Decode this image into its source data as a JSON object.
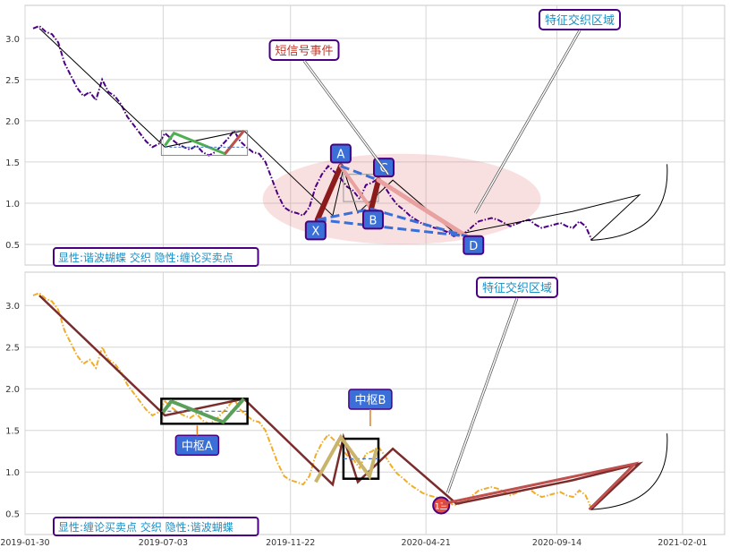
{
  "chart_data": [
    {
      "type": "line",
      "panel": "top",
      "xlim": [
        "2019-01-30",
        "2021-03-20"
      ],
      "ylim": [
        0.25,
        3.4
      ],
      "yticks": [
        0.5,
        1.0,
        1.5,
        2.0,
        2.5,
        3.0
      ],
      "ytick_labels": [
        "0.5",
        "1.0",
        "1.5",
        "2.0",
        "2.5",
        "3.0"
      ],
      "grid": true,
      "series": [
        {
          "color": "#4b0082",
          "style": "dash-dot",
          "x": [
            "2019-02-08",
            "2019-02-15",
            "2019-02-22",
            "2019-03-01",
            "2019-03-08",
            "2019-03-15",
            "2019-03-22",
            "2019-03-29",
            "2019-04-05",
            "2019-04-12",
            "2019-04-19",
            "2019-04-26",
            "2019-05-03",
            "2019-05-10",
            "2019-05-17",
            "2019-05-24",
            "2019-05-31",
            "2019-06-07",
            "2019-06-14",
            "2019-06-21",
            "2019-06-28",
            "2019-07-05",
            "2019-07-12",
            "2019-07-19",
            "2019-07-26",
            "2019-08-02",
            "2019-08-09",
            "2019-08-16",
            "2019-08-23",
            "2019-08-30",
            "2019-09-06",
            "2019-09-13",
            "2019-09-20",
            "2019-09-27",
            "2019-10-04",
            "2019-10-11",
            "2019-10-18",
            "2019-10-25",
            "2019-11-01",
            "2019-11-08",
            "2019-11-15",
            "2019-11-22",
            "2019-11-29",
            "2019-12-06",
            "2019-12-13",
            "2019-12-20",
            "2019-12-27",
            "2020-01-03",
            "2020-01-10",
            "2020-01-17",
            "2020-01-24",
            "2020-01-31",
            "2020-02-07",
            "2020-02-14",
            "2020-02-21",
            "2020-02-28",
            "2020-03-06",
            "2020-03-13",
            "2020-03-20",
            "2020-03-27",
            "2020-04-03",
            "2020-04-10",
            "2020-04-17",
            "2020-04-24",
            "2020-05-01",
            "2020-05-08",
            "2020-05-15",
            "2020-05-22",
            "2020-05-29",
            "2020-06-05",
            "2020-06-12",
            "2020-06-19",
            "2020-06-26",
            "2020-07-03",
            "2020-07-10",
            "2020-07-17",
            "2020-07-24",
            "2020-07-31",
            "2020-08-07",
            "2020-08-14",
            "2020-08-21",
            "2020-08-28",
            "2020-09-04",
            "2020-09-11",
            "2020-09-18",
            "2020-09-25",
            "2020-10-02",
            "2020-10-09",
            "2020-10-16",
            "2020-10-23"
          ],
          "values": [
            3.12,
            3.15,
            3.08,
            3.05,
            2.95,
            2.7,
            2.55,
            2.4,
            2.3,
            2.35,
            2.25,
            2.5,
            2.35,
            2.3,
            2.2,
            2.05,
            1.95,
            1.85,
            1.75,
            1.68,
            1.72,
            1.85,
            1.78,
            1.72,
            1.68,
            1.65,
            1.7,
            1.62,
            1.58,
            1.62,
            1.7,
            1.78,
            1.88,
            1.75,
            1.68,
            1.62,
            1.6,
            1.5,
            1.3,
            1.1,
            0.95,
            0.9,
            0.88,
            0.85,
            0.95,
            1.2,
            1.35,
            1.45,
            1.38,
            1.3,
            1.2,
            1.15,
            1.05,
            1.22,
            1.25,
            1.3,
            1.2,
            1.08,
            0.98,
            0.92,
            0.85,
            0.8,
            0.75,
            0.72,
            0.7,
            0.68,
            0.65,
            0.6,
            0.62,
            0.65,
            0.72,
            0.78,
            0.8,
            0.82,
            0.8,
            0.76,
            0.72,
            0.75,
            0.78,
            0.8,
            0.74,
            0.7,
            0.72,
            0.74,
            0.76,
            0.72,
            0.7,
            0.78,
            0.72,
            0.55
          ]
        }
      ],
      "stroke_line": {
        "color": "#000000",
        "x": [
          "2019-02-15",
          "2019-07-05",
          "2019-10-01",
          "2020-01-08",
          "2020-01-20",
          "2020-02-05",
          "2020-03-15",
          "2020-05-25",
          "2020-10-01",
          "2020-12-15",
          "2020-10-22"
        ],
        "values": [
          3.12,
          1.68,
          1.88,
          0.85,
          1.42,
          0.88,
          1.28,
          0.62,
          0.9,
          1.1,
          0.55
        ]
      },
      "butterfly": {
        "points": [
          {
            "label": "X",
            "date": "2019-12-22",
            "value": 0.8
          },
          {
            "label": "A",
            "date": "2020-01-17",
            "value": 1.45
          },
          {
            "label": "B",
            "date": "2020-02-20",
            "value": 0.93
          },
          {
            "label": "C",
            "date": "2020-02-28",
            "value": 1.28
          },
          {
            "label": "D",
            "date": "2020-06-05",
            "value": 0.6
          }
        ]
      },
      "pivot_box": {
        "x0": "2019-07-01",
        "x1": "2019-10-05",
        "y0": 1.58,
        "y1": 1.88
      },
      "pivot_box_2": {
        "x0": "2020-01-20",
        "x1": "2020-02-28",
        "y0": 1.02,
        "y1": 1.35
      },
      "highlight_ellipse": {
        "cx": "2020-03-25",
        "cy": 1.05,
        "rx_days": 155,
        "ry": 0.55
      },
      "annotations": [
        {
          "text": "短信号事件",
          "color": "#c0392b",
          "border": "#4b0082"
        },
        {
          "text": "特征交织区域",
          "color": "#1a8fc4",
          "border": "#4b0082"
        }
      ],
      "footer_label": "显性:谐波蝴蝶 交织 隐性:缠论买卖点"
    },
    {
      "type": "line",
      "panel": "bottom",
      "xlim": [
        "2019-01-30",
        "2021-03-20"
      ],
      "ylim": [
        0.25,
        3.4
      ],
      "yticks": [
        0.5,
        1.0,
        1.5,
        2.0,
        2.5,
        3.0
      ],
      "ytick_labels": [
        "0.5",
        "1.0",
        "1.5",
        "2.0",
        "2.5",
        "3.0"
      ],
      "xticks": [
        "2019-01-30",
        "2019-07-03",
        "2019-11-22",
        "2020-04-21",
        "2020-09-14",
        "2021-02-01"
      ],
      "xtick_labels": [
        "2019-01-30",
        "2019-07-03",
        "2019-11-22",
        "2020-04-21",
        "2020-09-14",
        "2021-02-01"
      ],
      "grid": true,
      "series": [
        {
          "color": "#f0ad2c",
          "style": "dash-dot",
          "x": [
            "2019-02-08",
            "2019-02-15",
            "2019-02-22",
            "2019-03-01",
            "2019-03-08",
            "2019-03-15",
            "2019-03-22",
            "2019-03-29",
            "2019-04-05",
            "2019-04-12",
            "2019-04-19",
            "2019-04-26",
            "2019-05-03",
            "2019-05-10",
            "2019-05-17",
            "2019-05-24",
            "2019-05-31",
            "2019-06-07",
            "2019-06-14",
            "2019-06-21",
            "2019-06-28",
            "2019-07-05",
            "2019-07-12",
            "2019-07-19",
            "2019-07-26",
            "2019-08-02",
            "2019-08-09",
            "2019-08-16",
            "2019-08-23",
            "2019-08-30",
            "2019-09-06",
            "2019-09-13",
            "2019-09-20",
            "2019-09-27",
            "2019-10-04",
            "2019-10-11",
            "2019-10-18",
            "2019-10-25",
            "2019-11-01",
            "2019-11-08",
            "2019-11-15",
            "2019-11-22",
            "2019-11-29",
            "2019-12-06",
            "2019-12-13",
            "2019-12-20",
            "2019-12-27",
            "2020-01-03",
            "2020-01-10",
            "2020-01-17",
            "2020-01-24",
            "2020-01-31",
            "2020-02-07",
            "2020-02-14",
            "2020-02-21",
            "2020-02-28",
            "2020-03-06",
            "2020-03-13",
            "2020-03-20",
            "2020-03-27",
            "2020-04-03",
            "2020-04-10",
            "2020-04-17",
            "2020-04-24",
            "2020-05-01",
            "2020-05-08",
            "2020-05-15",
            "2020-05-22",
            "2020-05-29",
            "2020-06-05",
            "2020-06-12",
            "2020-06-19",
            "2020-06-26",
            "2020-07-03",
            "2020-07-10",
            "2020-07-17",
            "2020-07-24",
            "2020-07-31",
            "2020-08-07",
            "2020-08-14",
            "2020-08-21",
            "2020-08-28",
            "2020-09-04",
            "2020-09-11",
            "2020-09-18",
            "2020-09-25",
            "2020-10-02",
            "2020-10-09",
            "2020-10-16",
            "2020-10-23"
          ],
          "values": [
            3.12,
            3.15,
            3.08,
            3.05,
            2.95,
            2.7,
            2.55,
            2.4,
            2.3,
            2.35,
            2.25,
            2.5,
            2.35,
            2.3,
            2.2,
            2.05,
            1.95,
            1.85,
            1.75,
            1.68,
            1.72,
            1.85,
            1.78,
            1.72,
            1.68,
            1.65,
            1.7,
            1.62,
            1.58,
            1.62,
            1.7,
            1.78,
            1.88,
            1.75,
            1.68,
            1.62,
            1.6,
            1.5,
            1.3,
            1.1,
            0.95,
            0.9,
            0.88,
            0.85,
            0.95,
            1.2,
            1.35,
            1.45,
            1.38,
            1.3,
            1.2,
            1.15,
            1.05,
            1.22,
            1.25,
            1.3,
            1.2,
            1.08,
            0.98,
            0.92,
            0.85,
            0.8,
            0.75,
            0.72,
            0.7,
            0.68,
            0.65,
            0.6,
            0.62,
            0.65,
            0.72,
            0.78,
            0.8,
            0.82,
            0.8,
            0.76,
            0.72,
            0.75,
            0.78,
            0.8,
            0.74,
            0.7,
            0.72,
            0.74,
            0.76,
            0.72,
            0.7,
            0.78,
            0.72,
            0.55
          ]
        }
      ],
      "stroke_line": {
        "color": "#000000",
        "x": [
          "2019-02-15",
          "2019-07-05",
          "2019-10-01",
          "2020-01-08",
          "2020-01-20",
          "2020-02-05",
          "2020-03-15",
          "2020-05-25",
          "2020-10-01",
          "2020-12-15",
          "2020-10-22"
        ],
        "values": [
          3.12,
          1.68,
          1.88,
          0.85,
          1.42,
          0.88,
          1.28,
          0.62,
          0.9,
          1.1,
          0.55
        ]
      },
      "pivots": [
        {
          "label": "中枢A",
          "x0": "2019-07-01",
          "x1": "2019-10-05",
          "y0": 1.58,
          "y1": 1.88
        },
        {
          "label": "中枢B",
          "x0": "2020-01-20",
          "x1": "2020-02-28",
          "y0": 0.92,
          "y1": 1.4
        }
      ],
      "buy_point_label": "1三",
      "annotations": [
        {
          "text": "特征交织区域",
          "color": "#1a8fc4",
          "border": "#4b0082"
        }
      ],
      "footer_label": "显性:缠论买卖点 交织 隐性:谐波蝴蝶"
    }
  ]
}
